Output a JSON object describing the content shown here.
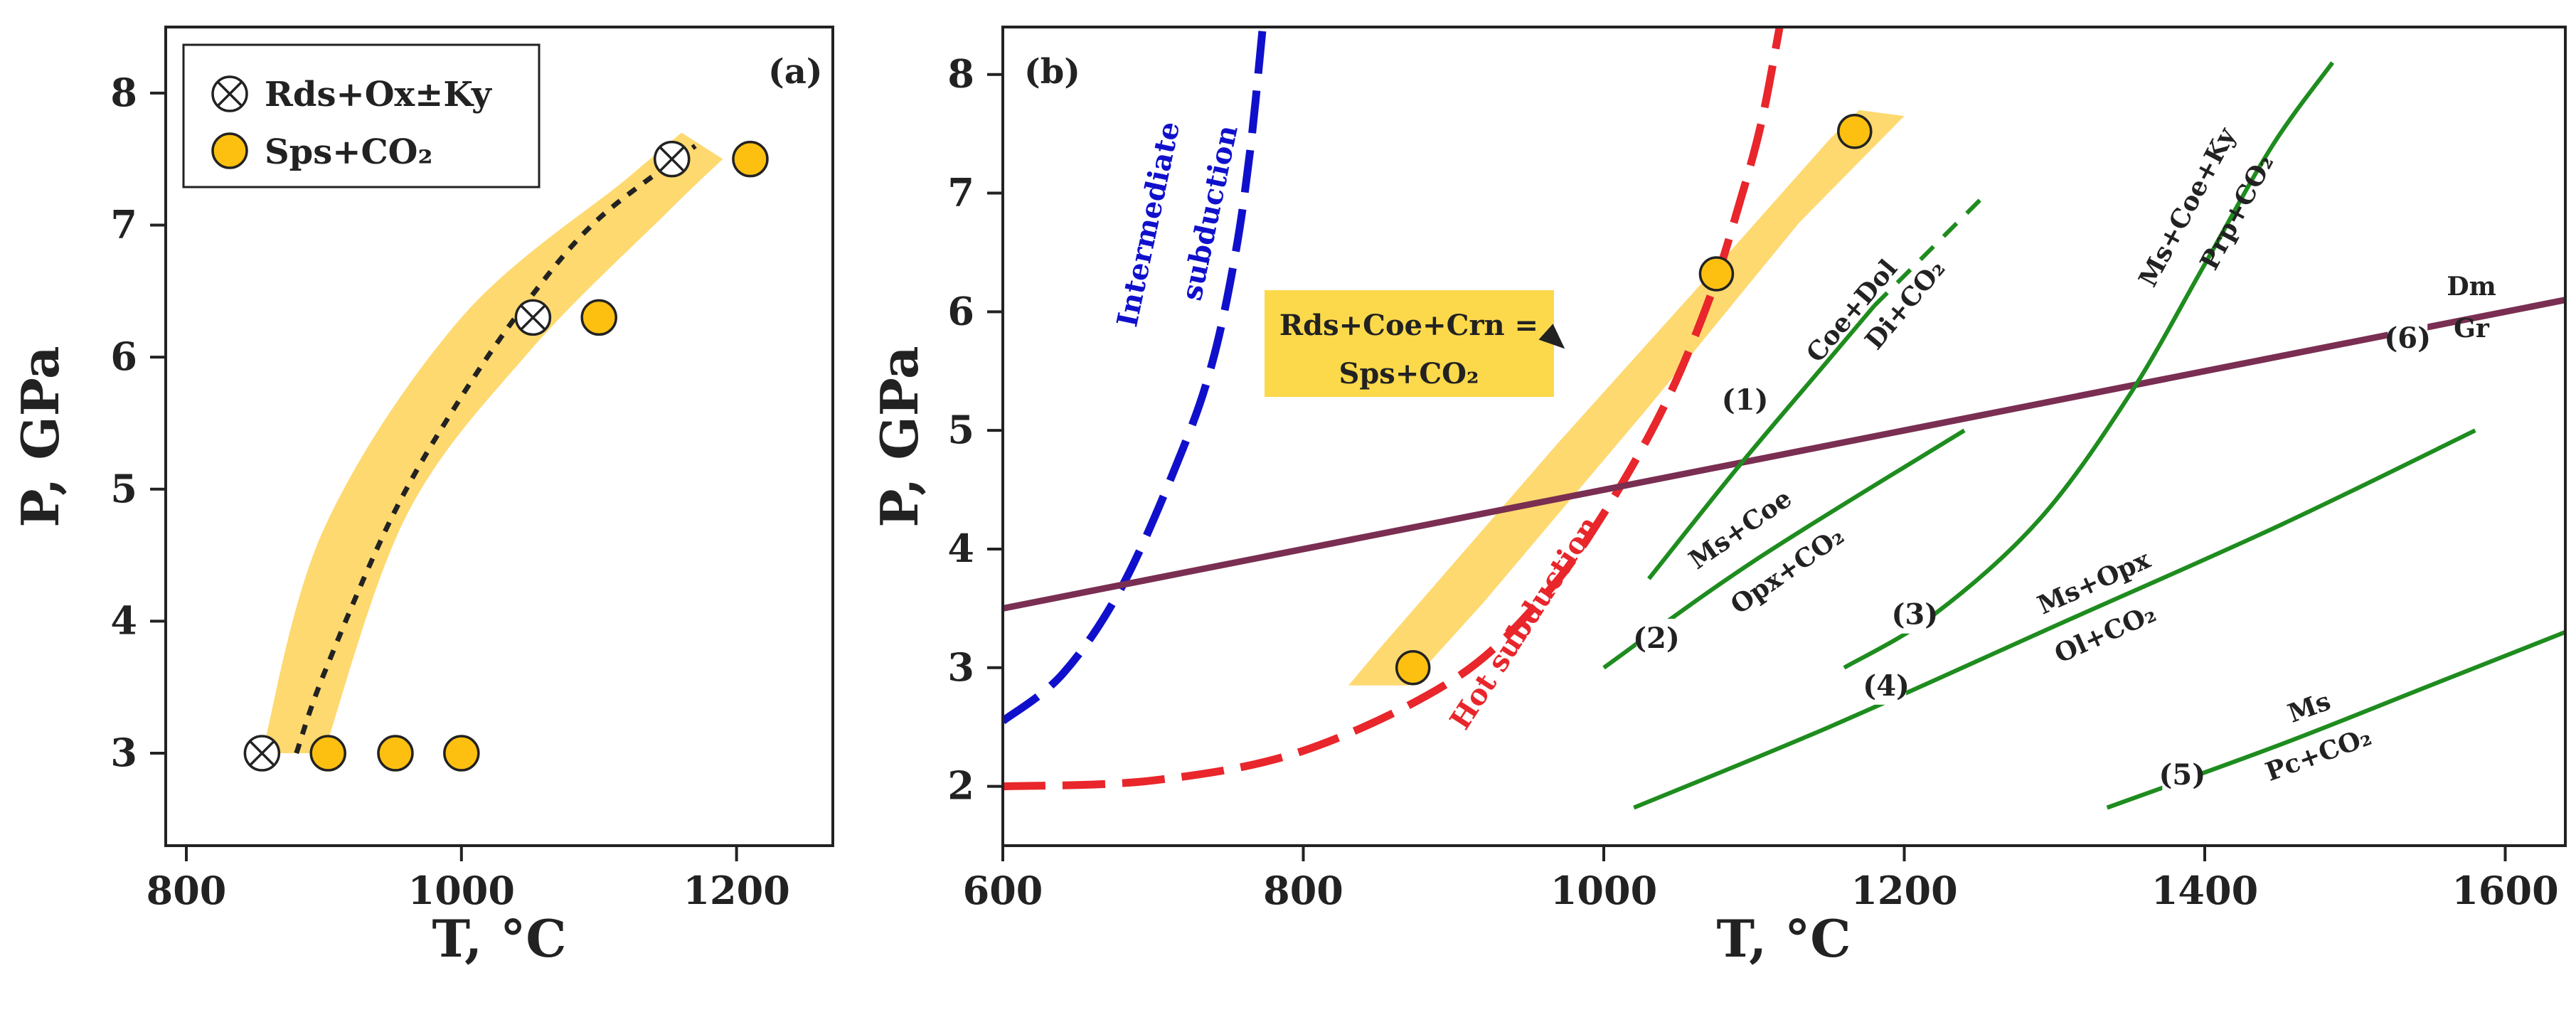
{
  "colors": {
    "band": "#FDC010",
    "hot": "#E8262B",
    "intermediate": "#1010CC",
    "green": "#1E8C1E",
    "dmgr": "#7A2E52",
    "box_fill": "#FCD94B"
  },
  "chart_data": [
    {
      "id": "a",
      "type": "scatter",
      "panel_label": "(a)",
      "xlabel": "T, °C",
      "ylabel": "P, GPa",
      "xlim": [
        785,
        1270
      ],
      "ylim": [
        2.3,
        8.5
      ],
      "xticks": [
        800,
        1000,
        1200
      ],
      "xtick_labels": [
        "800",
        "1000",
        "1200"
      ],
      "yticks": [
        3,
        4,
        5,
        6,
        7,
        8
      ],
      "ytick_labels": [
        "3",
        "4",
        "5",
        "6",
        "7",
        "8"
      ],
      "legend": {
        "position": "top-left",
        "entries": [
          {
            "key": "rds",
            "label": "Rds+Ox±Ky",
            "marker": "circle-x"
          },
          {
            "key": "sps",
            "label": "Sps+CO₂",
            "marker": "circle-orange"
          }
        ]
      },
      "series": [
        {
          "name": "Rds+Ox±Ky",
          "marker": "circle-x",
          "points": [
            [
              855,
              3.0
            ],
            [
              1052,
              6.3
            ],
            [
              1153,
              7.5
            ]
          ]
        },
        {
          "name": "Sps+CO₂",
          "marker": "circle-orange",
          "points": [
            [
              903,
              3.0
            ],
            [
              952,
              3.0
            ],
            [
              1000,
              3.0
            ],
            [
              1100,
              6.3
            ],
            [
              1210,
              7.5
            ]
          ]
        }
      ],
      "band": {
        "upper": [
          [
            855,
            3.0
          ],
          [
            900,
            4.7
          ],
          [
            1000,
            6.3
          ],
          [
            1120,
            7.35
          ],
          [
            1160,
            7.7
          ]
        ],
        "lower": [
          [
            1190,
            7.5
          ],
          [
            1150,
            7.1
          ],
          [
            1050,
            6.05
          ],
          [
            960,
            4.8
          ],
          [
            900,
            3.0
          ]
        ]
      },
      "trend_line": [
        [
          880,
          3.0
        ],
        [
          900,
          3.6
        ],
        [
          950,
          4.8
        ],
        [
          1000,
          5.7
        ],
        [
          1050,
          6.45
        ],
        [
          1100,
          7.05
        ],
        [
          1170,
          7.6
        ]
      ]
    },
    {
      "id": "b",
      "type": "line",
      "panel_label": "(b)",
      "xlabel": "T, °C",
      "ylabel": "P, GPa",
      "xlim": [
        600,
        1640
      ],
      "ylim": [
        1.5,
        8.4
      ],
      "xticks": [
        600,
        800,
        1000,
        1200,
        1400,
        1600
      ],
      "xtick_labels": [
        "600",
        "800",
        "1000",
        "1200",
        "1400",
        "1600"
      ],
      "yticks": [
        2,
        3,
        4,
        5,
        6,
        7,
        8
      ],
      "ytick_labels": [
        "2",
        "3",
        "4",
        "5",
        "6",
        "7",
        "8"
      ],
      "band": {
        "upper": [
          [
            850,
            3.15
          ],
          [
            970,
            4.9
          ],
          [
            1080,
            6.45
          ],
          [
            1150,
            7.45
          ],
          [
            1170,
            7.7
          ]
        ],
        "lower": [
          [
            1200,
            7.65
          ],
          [
            1130,
            6.75
          ],
          [
            1030,
            5.2
          ],
          [
            920,
            3.55
          ],
          [
            870,
            2.85
          ],
          [
            830,
            2.85
          ]
        ]
      },
      "points": [
        [
          873,
          3.0
        ],
        [
          1075,
          6.32
        ],
        [
          1167,
          7.52
        ]
      ],
      "curves": [
        {
          "name": "Intermediate subduction",
          "style": "dashed",
          "color_key": "intermediate",
          "points": [
            [
              600,
              2.55
            ],
            [
              640,
              2.95
            ],
            [
              680,
              3.7
            ],
            [
              720,
              4.85
            ],
            [
              740,
              5.6
            ],
            [
              755,
              6.5
            ],
            [
              765,
              7.4
            ],
            [
              773,
              8.4
            ]
          ]
        },
        {
          "name": "Hot subduction",
          "style": "dashed",
          "color_key": "hot",
          "points": [
            [
              600,
              2.0
            ],
            [
              700,
              2.05
            ],
            [
              800,
              2.3
            ],
            [
              900,
              2.9
            ],
            [
              960,
              3.6
            ],
            [
              1000,
              4.3
            ],
            [
              1040,
              5.2
            ],
            [
              1070,
              6.1
            ],
            [
              1090,
              6.9
            ],
            [
              1105,
              7.6
            ],
            [
              1117,
              8.4
            ]
          ]
        },
        {
          "name": "Dm-Gr",
          "style": "solid",
          "color_key": "dmgr",
          "points": [
            [
              600,
              3.5
            ],
            [
              1640,
              6.1
            ]
          ]
        },
        {
          "name": "(1)",
          "style": "solid",
          "color_key": "green",
          "points": [
            [
              1030,
              3.75
            ],
            [
              1090,
              4.7
            ],
            [
              1150,
              5.6
            ],
            [
              1180,
              6.05
            ]
          ]
        },
        {
          "name": "(1) extension",
          "style": "dashed",
          "color_key": "green",
          "points": [
            [
              1180,
              6.05
            ],
            [
              1255,
              7.0
            ]
          ]
        },
        {
          "name": "(2)",
          "style": "solid",
          "color_key": "green",
          "points": [
            [
              1000,
              3.0
            ],
            [
              1100,
              3.9
            ],
            [
              1240,
              5.0
            ]
          ]
        },
        {
          "name": "(3)",
          "style": "solid",
          "color_key": "green",
          "points": [
            [
              1160,
              3.0
            ],
            [
              1220,
              3.45
            ],
            [
              1290,
              4.25
            ],
            [
              1350,
              5.3
            ],
            [
              1400,
              6.4
            ],
            [
              1445,
              7.4
            ],
            [
              1485,
              8.1
            ]
          ]
        },
        {
          "name": "(4)",
          "style": "solid",
          "color_key": "green",
          "points": [
            [
              1020,
              1.82
            ],
            [
              1150,
              2.5
            ],
            [
              1300,
              3.35
            ],
            [
              1450,
              4.2
            ],
            [
              1580,
              5.0
            ]
          ]
        },
        {
          "name": "(5)",
          "style": "solid",
          "color_key": "green",
          "points": [
            [
              1335,
              1.82
            ],
            [
              1450,
              2.35
            ],
            [
              1550,
              2.85
            ],
            [
              1640,
              3.3
            ]
          ]
        }
      ],
      "annotations": [
        {
          "text": "Intermediate",
          "anchor": [
            705,
            6.1
          ]
        },
        {
          "text": "subduction",
          "anchor": [
            742,
            6.3
          ]
        },
        {
          "text": "Hot subduction",
          "anchor": [
            970,
            2.75
          ]
        },
        {
          "text": "Coe+Dol",
          "anchor": [
            1150,
            5.85
          ]
        },
        {
          "text": "Di+CO₂",
          "anchor": [
            1185,
            5.95
          ]
        },
        {
          "text": "Ms+Coe",
          "anchor": [
            1100,
            4.05
          ]
        },
        {
          "text": "Opx+CO₂",
          "anchor": [
            1130,
            3.7
          ]
        },
        {
          "text": "Ms+Coe+Ky",
          "anchor": [
            1390,
            7.05
          ]
        },
        {
          "text": "Prp+CO₂",
          "anchor": [
            1425,
            7.0
          ]
        },
        {
          "text": "Ms+Opx",
          "anchor": [
            1360,
            3.75
          ]
        },
        {
          "text": "Ol+CO₂",
          "anchor": [
            1370,
            3.25
          ]
        },
        {
          "text": "Ms",
          "anchor": [
            1412,
            2.53
          ]
        },
        {
          "text": "Pc+CO₂",
          "anchor": [
            1415,
            2.15
          ]
        },
        {
          "text": "Dm",
          "anchor": [
            1590,
            6.2
          ]
        },
        {
          "text": "Gr",
          "anchor": [
            1590,
            5.68
          ]
        }
      ],
      "curve_labels": [
        {
          "text": "(1)",
          "anchor": [
            1094,
            5.26
          ]
        },
        {
          "text": "(2)",
          "anchor": [
            1035,
            3.25
          ]
        },
        {
          "text": "(3)",
          "anchor": [
            1207,
            3.45
          ]
        },
        {
          "text": "(4)",
          "anchor": [
            1188,
            2.85
          ]
        },
        {
          "text": "(5)",
          "anchor": [
            1385,
            2.1
          ]
        },
        {
          "text": "(6)",
          "anchor": [
            1535,
            5.78
          ]
        }
      ],
      "reaction_box": {
        "line1": "Rds+Coe+Crn =",
        "line2": "Sps+CO₂",
        "arrow_to": [
          973,
          5.7
        ]
      }
    }
  ]
}
